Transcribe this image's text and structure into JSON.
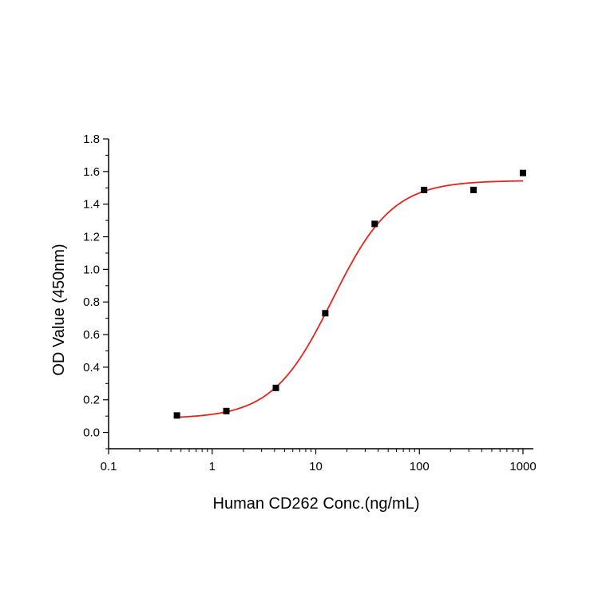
{
  "chart_data": {
    "type": "scatter",
    "title": "",
    "xlabel": "Human CD262 Conc.(ng/mL)",
    "ylabel": "OD Value (450nm)",
    "x_scale": "log",
    "xlim": [
      0.1,
      1000
    ],
    "ylim": [
      -0.1,
      1.8
    ],
    "x_ticks": [
      0.1,
      1,
      10,
      100,
      1000
    ],
    "x_tick_labels": [
      "0.1",
      "1",
      "10",
      "100",
      "1000"
    ],
    "y_ticks": [
      0.0,
      0.2,
      0.4,
      0.6,
      0.8,
      1.0,
      1.2,
      1.4,
      1.6,
      1.8
    ],
    "y_tick_labels": [
      "0.0",
      "0.2",
      "0.4",
      "0.6",
      "0.8",
      "1.0",
      "1.2",
      "1.4",
      "1.6",
      "1.8"
    ],
    "grid": false,
    "legend": "none",
    "series": [
      {
        "marker": "square",
        "color": "#000000",
        "x": [
          0.457,
          1.37,
          4.12,
          12.35,
          37.04,
          111.1,
          333.3,
          1000
        ],
        "y": [
          0.104,
          0.131,
          0.273,
          0.731,
          1.279,
          1.487,
          1.487,
          1.591
        ]
      }
    ],
    "fit": {
      "type": "4PL",
      "color": "#e8231d",
      "bottom": 0.085,
      "top": 1.545,
      "ec50": 14.5,
      "hill": 1.5,
      "x_range": [
        0.457,
        1000
      ]
    }
  }
}
